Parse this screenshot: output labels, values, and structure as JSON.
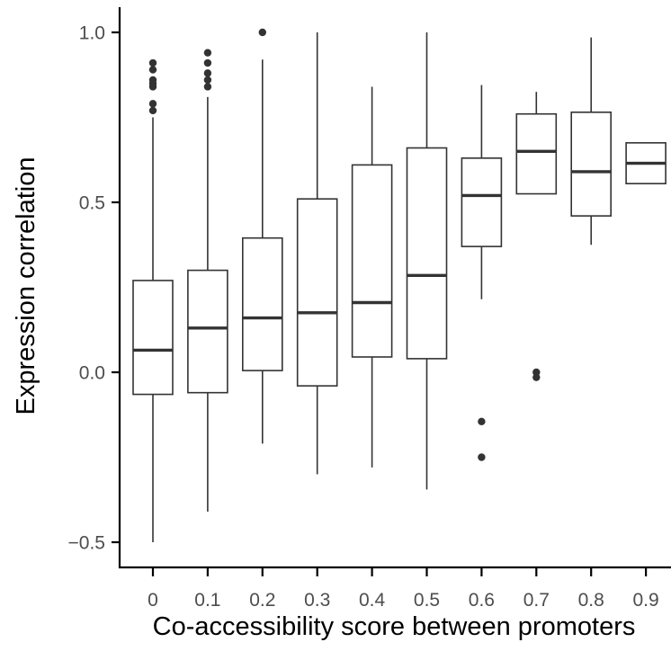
{
  "chart_data": {
    "type": "box",
    "xlabel": "Co-accessibility score between promoters",
    "ylabel": "Expression correlation",
    "ylim": [
      -0.58,
      1.08
    ],
    "yticks": [
      -0.5,
      0.0,
      0.5,
      1.0
    ],
    "ytick_labels": [
      "−0.5",
      "0.0",
      "0.5",
      "1.0"
    ],
    "categories": [
      "0",
      "0.1",
      "0.2",
      "0.3",
      "0.4",
      "0.5",
      "0.6",
      "0.7",
      "0.8",
      "0.9"
    ],
    "grid": false,
    "boxes": [
      {
        "category": "0",
        "whisker_low": -0.5,
        "q1": -0.065,
        "median": 0.065,
        "q3": 0.27,
        "whisker_high": 0.75,
        "outliers": [
          0.77,
          0.79,
          0.84,
          0.85,
          0.86,
          0.89,
          0.91
        ]
      },
      {
        "category": "0.1",
        "whisker_low": -0.41,
        "q1": -0.06,
        "median": 0.13,
        "q3": 0.3,
        "whisker_high": 0.81,
        "outliers": [
          0.84,
          0.86,
          0.88,
          0.91,
          0.94
        ]
      },
      {
        "category": "0.2",
        "whisker_low": -0.21,
        "q1": 0.005,
        "median": 0.16,
        "q3": 0.395,
        "whisker_high": 0.92,
        "outliers": [
          1.0
        ]
      },
      {
        "category": "0.3",
        "whisker_low": -0.3,
        "q1": -0.04,
        "median": 0.175,
        "q3": 0.51,
        "whisker_high": 1.0,
        "outliers": []
      },
      {
        "category": "0.4",
        "whisker_low": -0.28,
        "q1": 0.045,
        "median": 0.205,
        "q3": 0.61,
        "whisker_high": 0.84,
        "outliers": []
      },
      {
        "category": "0.5",
        "whisker_low": -0.345,
        "q1": 0.04,
        "median": 0.285,
        "q3": 0.66,
        "whisker_high": 1.0,
        "outliers": []
      },
      {
        "category": "0.6",
        "whisker_low": 0.215,
        "q1": 0.37,
        "median": 0.52,
        "q3": 0.63,
        "whisker_high": 0.845,
        "outliers": [
          -0.145,
          -0.25
        ]
      },
      {
        "category": "0.7",
        "whisker_low": 0.525,
        "q1": 0.525,
        "median": 0.65,
        "q3": 0.76,
        "whisker_high": 0.825,
        "outliers": [
          0.0,
          -0.015
        ]
      },
      {
        "category": "0.8",
        "whisker_low": 0.375,
        "q1": 0.46,
        "median": 0.59,
        "q3": 0.765,
        "whisker_high": 0.985,
        "outliers": []
      },
      {
        "category": "0.9",
        "whisker_low": 0.555,
        "q1": 0.555,
        "median": 0.615,
        "q3": 0.675,
        "whisker_high": 0.675,
        "outliers": []
      }
    ]
  }
}
